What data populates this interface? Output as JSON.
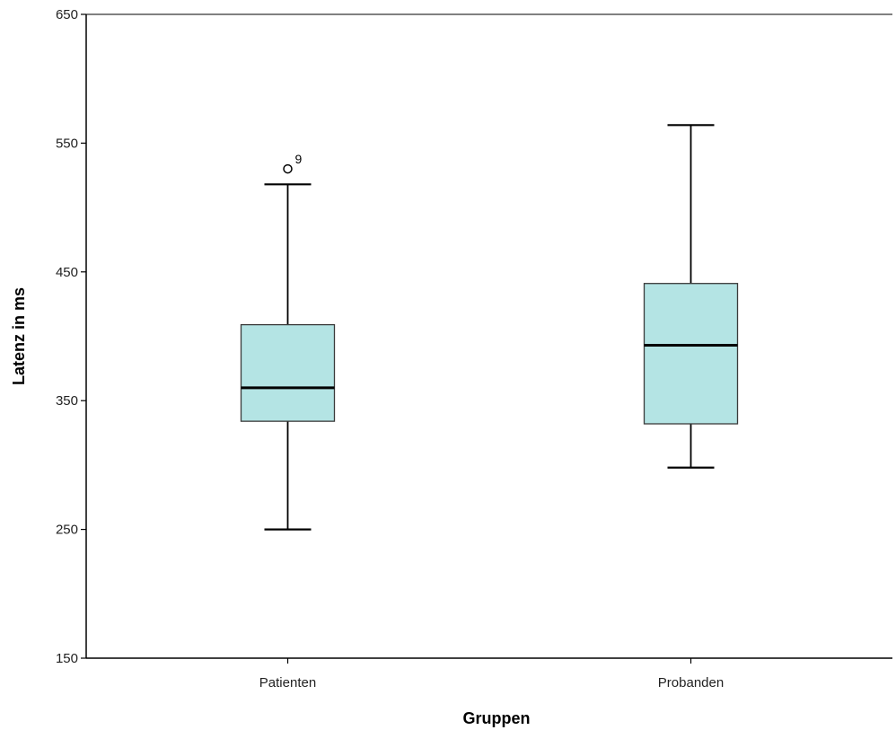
{
  "chart_data": {
    "type": "boxplot",
    "title": "",
    "xlabel": "Gruppen",
    "ylabel": "Latenz in ms",
    "ylim": [
      150,
      650
    ],
    "yticks": [
      150,
      250,
      350,
      450,
      550,
      650
    ],
    "categories": [
      "Patienten",
      "Probanden"
    ],
    "boxes": [
      {
        "category": "Patienten",
        "whisker_low": 250,
        "q1": 334,
        "median": 360,
        "q3": 409,
        "whisker_high": 518,
        "outliers": [
          {
            "value": 530,
            "label": "9"
          }
        ]
      },
      {
        "category": "Probanden",
        "whisker_low": 298,
        "q1": 332,
        "median": 393,
        "q3": 441,
        "whisker_high": 564,
        "outliers": []
      }
    ],
    "grid": false,
    "colors": {
      "box_fill": "#b4e4e4",
      "box_stroke": "#3a3a3a",
      "median": "#000000",
      "axis": "#000000"
    }
  }
}
